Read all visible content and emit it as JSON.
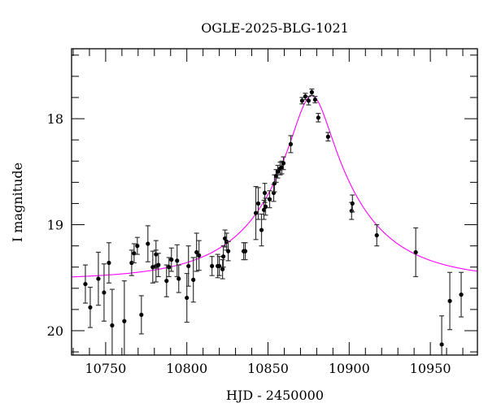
{
  "chart_data": {
    "type": "scatter",
    "title": "OGLE-2025-BLG-1021",
    "xlabel": "HJD - 2450000",
    "ylabel": "I magnitude",
    "xlim": [
      10729,
      10979
    ],
    "ylim": [
      20.23,
      17.34
    ],
    "y_inverted": true,
    "x_ticks": [
      10750,
      10800,
      10850,
      10900,
      10950
    ],
    "x_minor_step": 10,
    "y_ticks": [
      18,
      19,
      20
    ],
    "y_minor_step": 0.2,
    "grid": false,
    "colors": {
      "points": "#000000",
      "errorbars": "#333333",
      "model": "#ff00ff"
    },
    "points": [
      {
        "x": 10737.5,
        "y": 19.56,
        "err": 0.18
      },
      {
        "x": 10740.5,
        "y": 19.78,
        "err": 0.19
      },
      {
        "x": 10745.5,
        "y": 19.51,
        "err": 0.25
      },
      {
        "x": 10749,
        "y": 19.64,
        "err": 0.27
      },
      {
        "x": 10752,
        "y": 19.36,
        "err": 0.19
      },
      {
        "x": 10754,
        "y": 19.95,
        "err": 0.34
      },
      {
        "x": 10761.5,
        "y": 19.91,
        "err": 0.38
      },
      {
        "x": 10766,
        "y": 19.36,
        "err": 0.12
      },
      {
        "x": 10767.5,
        "y": 19.27,
        "err": 0.09
      },
      {
        "x": 10769.5,
        "y": 19.2,
        "err": 0.08
      },
      {
        "x": 10772,
        "y": 19.85,
        "err": 0.18
      },
      {
        "x": 10776,
        "y": 19.18,
        "err": 0.17
      },
      {
        "x": 10779,
        "y": 19.4,
        "err": 0.15
      },
      {
        "x": 10781,
        "y": 19.39,
        "err": 0.15
      },
      {
        "x": 10781,
        "y": 19.28,
        "err": 0.13
      },
      {
        "x": 10782.5,
        "y": 19.38,
        "err": 0.11
      },
      {
        "x": 10787.5,
        "y": 19.53,
        "err": 0.15
      },
      {
        "x": 10789,
        "y": 19.4,
        "err": 0.09
      },
      {
        "x": 10790.5,
        "y": 19.33,
        "err": 0.11
      },
      {
        "x": 10794,
        "y": 19.34,
        "err": 0.15
      },
      {
        "x": 10795,
        "y": 19.51,
        "err": 0.13
      },
      {
        "x": 10800,
        "y": 19.69,
        "err": 0.23
      },
      {
        "x": 10801,
        "y": 19.39,
        "err": 0.19
      },
      {
        "x": 10804,
        "y": 19.52,
        "err": 0.21
      },
      {
        "x": 10806,
        "y": 19.26,
        "err": 0.18
      },
      {
        "x": 10807.5,
        "y": 19.29,
        "err": 0.14
      },
      {
        "x": 10815.5,
        "y": 19.39,
        "err": 0.09
      },
      {
        "x": 10819,
        "y": 19.39,
        "err": 0.11
      },
      {
        "x": 10820,
        "y": 19.39,
        "err": 0.09
      },
      {
        "x": 10822,
        "y": 19.42,
        "err": 0.09
      },
      {
        "x": 10822.5,
        "y": 19.3,
        "err": 0.1
      },
      {
        "x": 10823.5,
        "y": 19.13,
        "err": 0.08
      },
      {
        "x": 10824.5,
        "y": 19.16,
        "err": 0.08
      },
      {
        "x": 10825.5,
        "y": 19.25,
        "err": 0.09
      },
      {
        "x": 10835,
        "y": 19.25,
        "err": 0.08
      },
      {
        "x": 10836,
        "y": 19.25,
        "err": 0.08
      },
      {
        "x": 10842.5,
        "y": 18.89,
        "err": 0.25
      },
      {
        "x": 10844,
        "y": 18.8,
        "err": 0.15
      },
      {
        "x": 10846,
        "y": 19.05,
        "err": 0.15
      },
      {
        "x": 10847.5,
        "y": 18.86,
        "err": 0.09
      },
      {
        "x": 10848,
        "y": 18.7,
        "err": 0.09
      },
      {
        "x": 10848.5,
        "y": 18.83,
        "err": 0.08
      },
      {
        "x": 10851,
        "y": 18.76,
        "err": 0.08
      },
      {
        "x": 10853.5,
        "y": 18.7,
        "err": 0.08
      },
      {
        "x": 10854,
        "y": 18.61,
        "err": 0.08
      },
      {
        "x": 10855,
        "y": 18.54,
        "err": 0.06
      },
      {
        "x": 10856,
        "y": 18.5,
        "err": 0.06
      },
      {
        "x": 10857.5,
        "y": 18.47,
        "err": 0.06
      },
      {
        "x": 10858.5,
        "y": 18.46,
        "err": 0.06
      },
      {
        "x": 10859.5,
        "y": 18.42,
        "err": 0.06
      },
      {
        "x": 10864,
        "y": 18.24,
        "err": 0.08
      },
      {
        "x": 10871,
        "y": 17.83,
        "err": 0.03
      },
      {
        "x": 10873,
        "y": 17.79,
        "err": 0.03
      },
      {
        "x": 10875,
        "y": 17.83,
        "err": 0.04
      },
      {
        "x": 10877,
        "y": 17.75,
        "err": 0.03
      },
      {
        "x": 10879,
        "y": 17.82,
        "err": 0.03
      },
      {
        "x": 10881,
        "y": 17.99,
        "err": 0.04
      },
      {
        "x": 10887,
        "y": 18.17,
        "err": 0.04
      },
      {
        "x": 10901.5,
        "y": 18.87,
        "err": 0.08
      },
      {
        "x": 10902,
        "y": 18.8,
        "err": 0.08
      },
      {
        "x": 10917,
        "y": 19.1,
        "err": 0.1
      },
      {
        "x": 10941,
        "y": 19.26,
        "err": 0.23
      },
      {
        "x": 10957,
        "y": 20.13,
        "err": 0.27
      },
      {
        "x": 10962,
        "y": 19.72,
        "err": 0.27
      },
      {
        "x": 10969,
        "y": 19.66,
        "err": 0.21
      }
    ],
    "model": {
      "type": "point-lens",
      "t0": 10877,
      "tE": 56,
      "u0": 0.205,
      "baseline_mag": 19.52
    }
  }
}
